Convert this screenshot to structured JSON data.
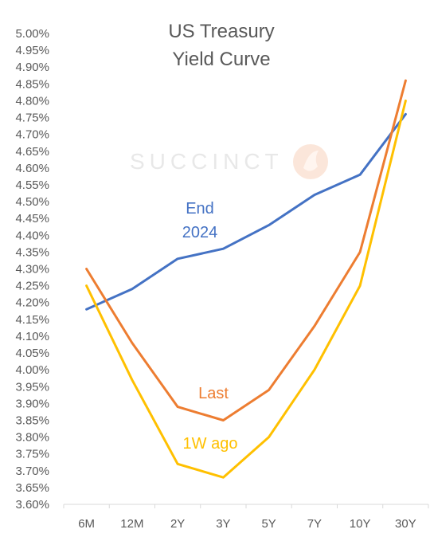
{
  "chart_data": {
    "type": "line",
    "title": [
      "US Treasury",
      "Yield Curve"
    ],
    "categories": [
      "6M",
      "12M",
      "2Y",
      "3Y",
      "5Y",
      "7Y",
      "10Y",
      "30Y"
    ],
    "ylim": [
      3.6,
      5.0
    ],
    "ystep": 0.05,
    "y_tick_format": "percent_2dp",
    "grid": false,
    "legend": "inline-labels",
    "series": [
      {
        "name": "End 2024",
        "label_lines": [
          "End",
          "2024"
        ],
        "color": "#4472C4",
        "values": [
          4.18,
          4.24,
          4.33,
          4.36,
          4.43,
          4.52,
          4.58,
          4.76
        ]
      },
      {
        "name": "Last",
        "label_lines": [
          "Last"
        ],
        "color": "#ED7D31",
        "values": [
          4.3,
          4.08,
          3.89,
          3.85,
          3.94,
          4.13,
          4.35,
          4.86
        ]
      },
      {
        "name": "1W ago",
        "label_lines": [
          "1W ago"
        ],
        "color": "#FFC000",
        "values": [
          4.25,
          3.97,
          3.72,
          3.68,
          3.8,
          4.0,
          4.25,
          4.8
        ]
      }
    ]
  },
  "watermark": {
    "text": "SUCCINCT",
    "color": "#e8e8e8"
  }
}
